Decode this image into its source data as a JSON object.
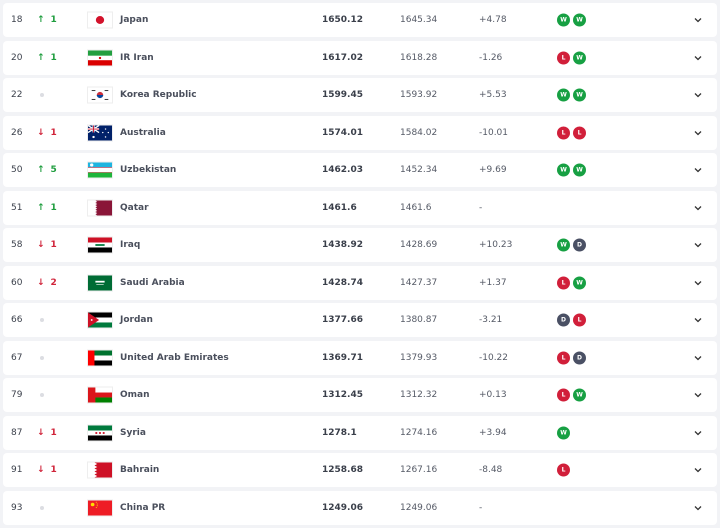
{
  "colors": {
    "up": "#1f9d3e",
    "down": "#d0243a",
    "win": "#17a043",
    "loss": "#d11f3a",
    "draw": "#4a5064"
  },
  "rows": [
    {
      "rank": "18",
      "move": "up",
      "change": "1",
      "team": "Japan",
      "flag": "flag-japan",
      "points": "1650.12",
      "previous": "1645.34",
      "diff": "+4.78",
      "form": [
        "W",
        "W"
      ]
    },
    {
      "rank": "20",
      "move": "up",
      "change": "1",
      "team": "IR Iran",
      "flag": "flag-iran",
      "points": "1617.02",
      "previous": "1618.28",
      "diff": "-1.26",
      "form": [
        "L",
        "W"
      ]
    },
    {
      "rank": "22",
      "move": "none",
      "change": "",
      "team": "Korea Republic",
      "flag": "flag-korea",
      "points": "1599.45",
      "previous": "1593.92",
      "diff": "+5.53",
      "form": [
        "W",
        "W"
      ]
    },
    {
      "rank": "26",
      "move": "down",
      "change": "1",
      "team": "Australia",
      "flag": "flag-australia",
      "points": "1574.01",
      "previous": "1584.02",
      "diff": "-10.01",
      "form": [
        "L",
        "L"
      ]
    },
    {
      "rank": "50",
      "move": "up",
      "change": "5",
      "team": "Uzbekistan",
      "flag": "flag-uzbekistan",
      "points": "1462.03",
      "previous": "1452.34",
      "diff": "+9.69",
      "form": [
        "W",
        "W"
      ]
    },
    {
      "rank": "51",
      "move": "up",
      "change": "1",
      "team": "Qatar",
      "flag": "flag-qatar",
      "points": "1461.6",
      "previous": "1461.6",
      "diff": "-",
      "form": []
    },
    {
      "rank": "58",
      "move": "down",
      "change": "1",
      "team": "Iraq",
      "flag": "flag-iraq",
      "points": "1438.92",
      "previous": "1428.69",
      "diff": "+10.23",
      "form": [
        "W",
        "D"
      ]
    },
    {
      "rank": "60",
      "move": "down",
      "change": "2",
      "team": "Saudi Arabia",
      "flag": "flag-saudi",
      "points": "1428.74",
      "previous": "1427.37",
      "diff": "+1.37",
      "form": [
        "L",
        "W"
      ]
    },
    {
      "rank": "66",
      "move": "none",
      "change": "",
      "team": "Jordan",
      "flag": "flag-jordan",
      "points": "1377.66",
      "previous": "1380.87",
      "diff": "-3.21",
      "form": [
        "D",
        "L"
      ]
    },
    {
      "rank": "67",
      "move": "none",
      "change": "",
      "team": "United Arab Emirates",
      "flag": "flag-uae",
      "points": "1369.71",
      "previous": "1379.93",
      "diff": "-10.22",
      "form": [
        "L",
        "D"
      ]
    },
    {
      "rank": "79",
      "move": "none",
      "change": "",
      "team": "Oman",
      "flag": "flag-oman",
      "points": "1312.45",
      "previous": "1312.32",
      "diff": "+0.13",
      "form": [
        "L",
        "W"
      ]
    },
    {
      "rank": "87",
      "move": "down",
      "change": "1",
      "team": "Syria",
      "flag": "flag-syria",
      "points": "1278.1",
      "previous": "1274.16",
      "diff": "+3.94",
      "form": [
        "W"
      ]
    },
    {
      "rank": "91",
      "move": "down",
      "change": "1",
      "team": "Bahrain",
      "flag": "flag-bahrain",
      "points": "1258.68",
      "previous": "1267.16",
      "diff": "-8.48",
      "form": [
        "L"
      ]
    },
    {
      "rank": "93",
      "move": "none",
      "change": "",
      "team": "China PR",
      "flag": "flag-china",
      "points": "1249.06",
      "previous": "1249.06",
      "diff": "-",
      "form": []
    }
  ]
}
